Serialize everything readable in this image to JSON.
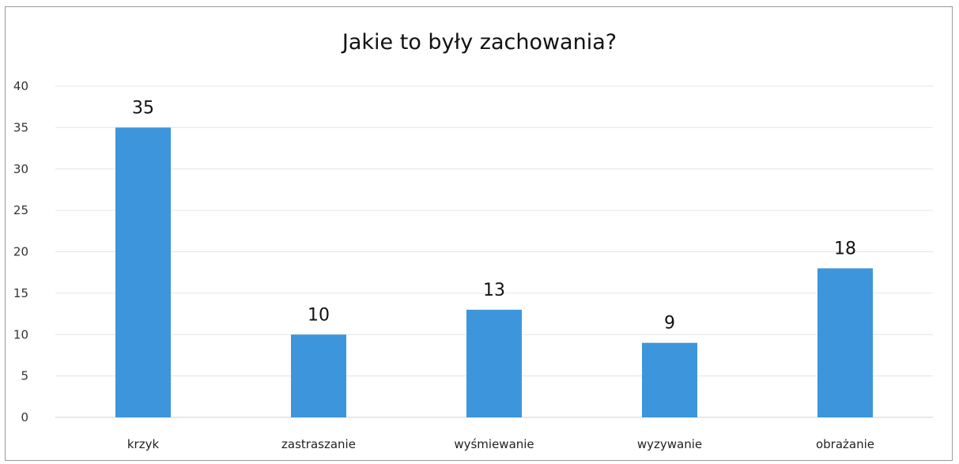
{
  "chart_data": {
    "type": "bar",
    "title": "Jakie to były zachowania?",
    "xlabel": "",
    "ylabel": "",
    "categories": [
      "krzyk",
      "zastraszanie",
      "wyśmiewanie",
      "wyzywanie",
      "obrażanie"
    ],
    "values": [
      35,
      10,
      13,
      9,
      18
    ],
    "data_labels": [
      "35",
      "10",
      "13",
      "9",
      "18"
    ],
    "ylim": [
      0,
      40
    ],
    "yticks": [
      "0",
      "5",
      "10",
      "15",
      "20",
      "25",
      "30",
      "35",
      "40"
    ],
    "grid": true,
    "legend": "none",
    "bar_color": "#3d96dc",
    "grid_color": "#e6e6e6"
  }
}
